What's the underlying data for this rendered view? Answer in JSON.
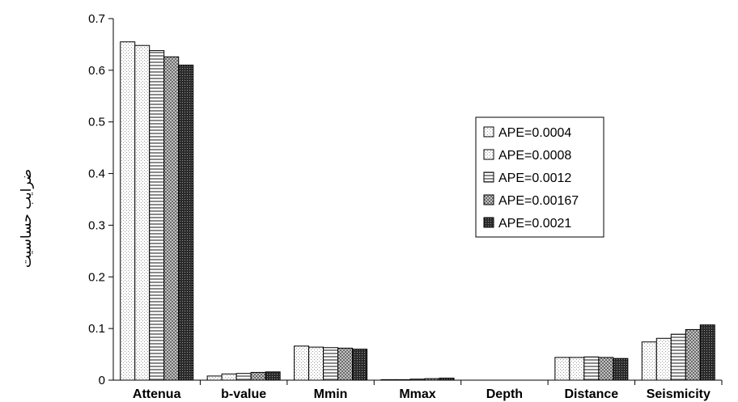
{
  "chart_data": {
    "type": "bar",
    "title": "",
    "xlabel": "",
    "ylabel": "ضرایب حساسیت",
    "ylim": [
      0,
      0.7
    ],
    "yticks": [
      "0",
      "0.1",
      "0.2",
      "0.3",
      "0.4",
      "0.5",
      "0.6",
      "0.7"
    ],
    "grid": false,
    "legend_position": "right",
    "categories": [
      "Attenua",
      "b-value",
      "Mmin",
      "Mmax",
      "Depth",
      "Distance",
      "Seismicity"
    ],
    "series": [
      {
        "name": "APE=0.0004",
        "pattern": "dots-light",
        "values": [
          0.655,
          0.008,
          0.066,
          0.001,
          0.0,
          0.044,
          0.074
        ]
      },
      {
        "name": "APE=0.0008",
        "pattern": "dots-light",
        "values": [
          0.648,
          0.012,
          0.064,
          0.001,
          0.0,
          0.044,
          0.081
        ]
      },
      {
        "name": "APE=0.0012",
        "pattern": "hlines",
        "values": [
          0.638,
          0.013,
          0.063,
          0.002,
          0.0,
          0.045,
          0.089
        ]
      },
      {
        "name": "APE=0.00167",
        "pattern": "checker",
        "values": [
          0.626,
          0.015,
          0.062,
          0.003,
          0.0,
          0.044,
          0.098
        ]
      },
      {
        "name": "APE=0.0021",
        "pattern": "dense",
        "values": [
          0.61,
          0.016,
          0.06,
          0.004,
          0.0,
          0.042,
          0.107
        ]
      }
    ]
  }
}
